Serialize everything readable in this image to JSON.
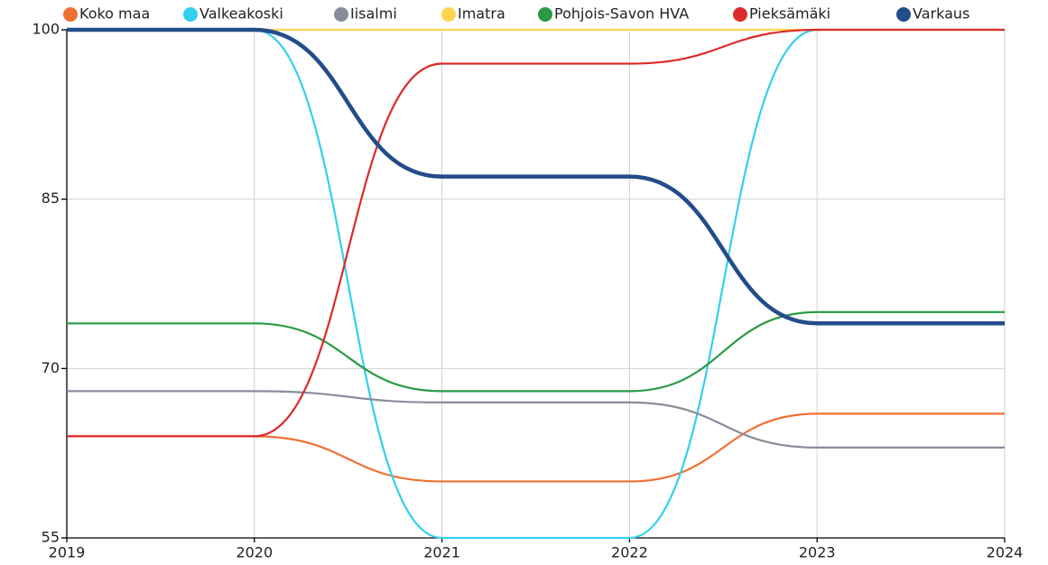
{
  "chart_data": {
    "type": "line",
    "x": [
      2019,
      2020,
      2021,
      2022,
      2023,
      2024
    ],
    "xlim": [
      2019,
      2024
    ],
    "xticks": [
      2019,
      2020,
      2021,
      2022,
      2023,
      2024
    ],
    "ylim": [
      55,
      100
    ],
    "yticks": [
      55,
      70,
      85,
      100
    ],
    "grid": true,
    "legend": "top",
    "series": [
      {
        "name": "Koko maa",
        "color": "#f07034",
        "values": [
          64,
          64,
          60,
          60,
          66,
          66
        ]
      },
      {
        "name": "Valkeakoski",
        "color": "#33d0ee",
        "values": [
          100,
          100,
          55,
          55,
          100,
          100
        ]
      },
      {
        "name": "Iisalmi",
        "color": "#878d99",
        "values": [
          68,
          68,
          67,
          67,
          63,
          63
        ]
      },
      {
        "name": "Imatra",
        "color": "#ffd54f",
        "values": [
          100,
          100,
          100,
          100,
          100,
          100
        ]
      },
      {
        "name": "Pohjois-Savon HVA",
        "color": "#2a9a43",
        "values": [
          74,
          74,
          68,
          68,
          75,
          75
        ]
      },
      {
        "name": "Pieksämäki",
        "color": "#dc2a2a",
        "values": [
          64,
          64,
          97,
          97,
          100,
          100
        ]
      },
      {
        "name": "Varkaus",
        "color": "#234c8a",
        "values": [
          100,
          100,
          87,
          87,
          74,
          74
        ]
      }
    ]
  }
}
